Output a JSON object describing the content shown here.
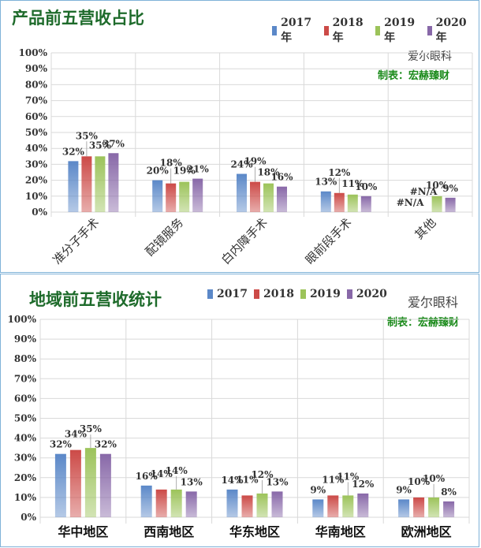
{
  "colors": {
    "s2017": "#5b88c8",
    "s2018": "#cc4a47",
    "s2019": "#9cc35a",
    "s2020": "#8868a8",
    "title": "#1e6b2b",
    "maker": "#1a8a1a"
  },
  "chart_data": [
    {
      "type": "bar",
      "title": "产品前五营收占比",
      "brand": "爱尔眼科",
      "maker": "制表：宏赫臻财",
      "categories": [
        "准分子手术",
        "配镜服务",
        "白内障手术",
        "眼前段手术",
        "其他"
      ],
      "series": [
        {
          "name": "2017年",
          "values": [
            32,
            20,
            24,
            13,
            null
          ],
          "labels": [
            "32%",
            "20%",
            "24%",
            "13%",
            "#N/A"
          ]
        },
        {
          "name": "2018年",
          "values": [
            35,
            18,
            19,
            12,
            null
          ],
          "labels": [
            "35%",
            "18%",
            "19%",
            "12%",
            "#N/A"
          ]
        },
        {
          "name": "2019年",
          "values": [
            35,
            19,
            18,
            11,
            10
          ],
          "labels": [
            "35%",
            "19%",
            "18%",
            "11%",
            "10%"
          ]
        },
        {
          "name": "2020年",
          "values": [
            37,
            21,
            16,
            10,
            9
          ],
          "labels": [
            "37%",
            "21%",
            "16%",
            "10%",
            "9%"
          ]
        }
      ],
      "yticks": [
        "0%",
        "10%",
        "20%",
        "30%",
        "40%",
        "50%",
        "60%",
        "70%",
        "80%",
        "90%",
        "100%"
      ],
      "ylim": [
        0,
        100
      ],
      "grid": true,
      "legend": "top-right"
    },
    {
      "type": "bar",
      "title": "地域前五营收统计",
      "brand": "爱尔眼科",
      "maker": "制表：宏赫臻财",
      "categories": [
        "华中地区",
        "西南地区",
        "华东地区",
        "华南地区",
        "欧洲地区"
      ],
      "series": [
        {
          "name": "2017",
          "values": [
            32,
            16,
            14,
            9,
            9
          ],
          "labels": [
            "32%",
            "16%",
            "14%",
            "9%",
            "9%"
          ]
        },
        {
          "name": "2018",
          "values": [
            34,
            14,
            11,
            11,
            10
          ],
          "labels": [
            "34%",
            "14%",
            "11%",
            "11%",
            "10%"
          ]
        },
        {
          "name": "2019",
          "values": [
            35,
            14,
            12,
            11,
            10
          ],
          "labels": [
            "35%",
            "14%",
            "12%",
            "11%",
            "10%"
          ]
        },
        {
          "name": "2020",
          "values": [
            32,
            13,
            13,
            12,
            8
          ],
          "labels": [
            "32%",
            "13%",
            "13%",
            "12%",
            "8%"
          ]
        }
      ],
      "yticks": [
        "0%",
        "10%",
        "20%",
        "30%",
        "40%",
        "50%",
        "60%",
        "70%",
        "80%",
        "90%",
        "100%"
      ],
      "ylim": [
        0,
        100
      ],
      "grid": true,
      "legend": "top"
    }
  ]
}
